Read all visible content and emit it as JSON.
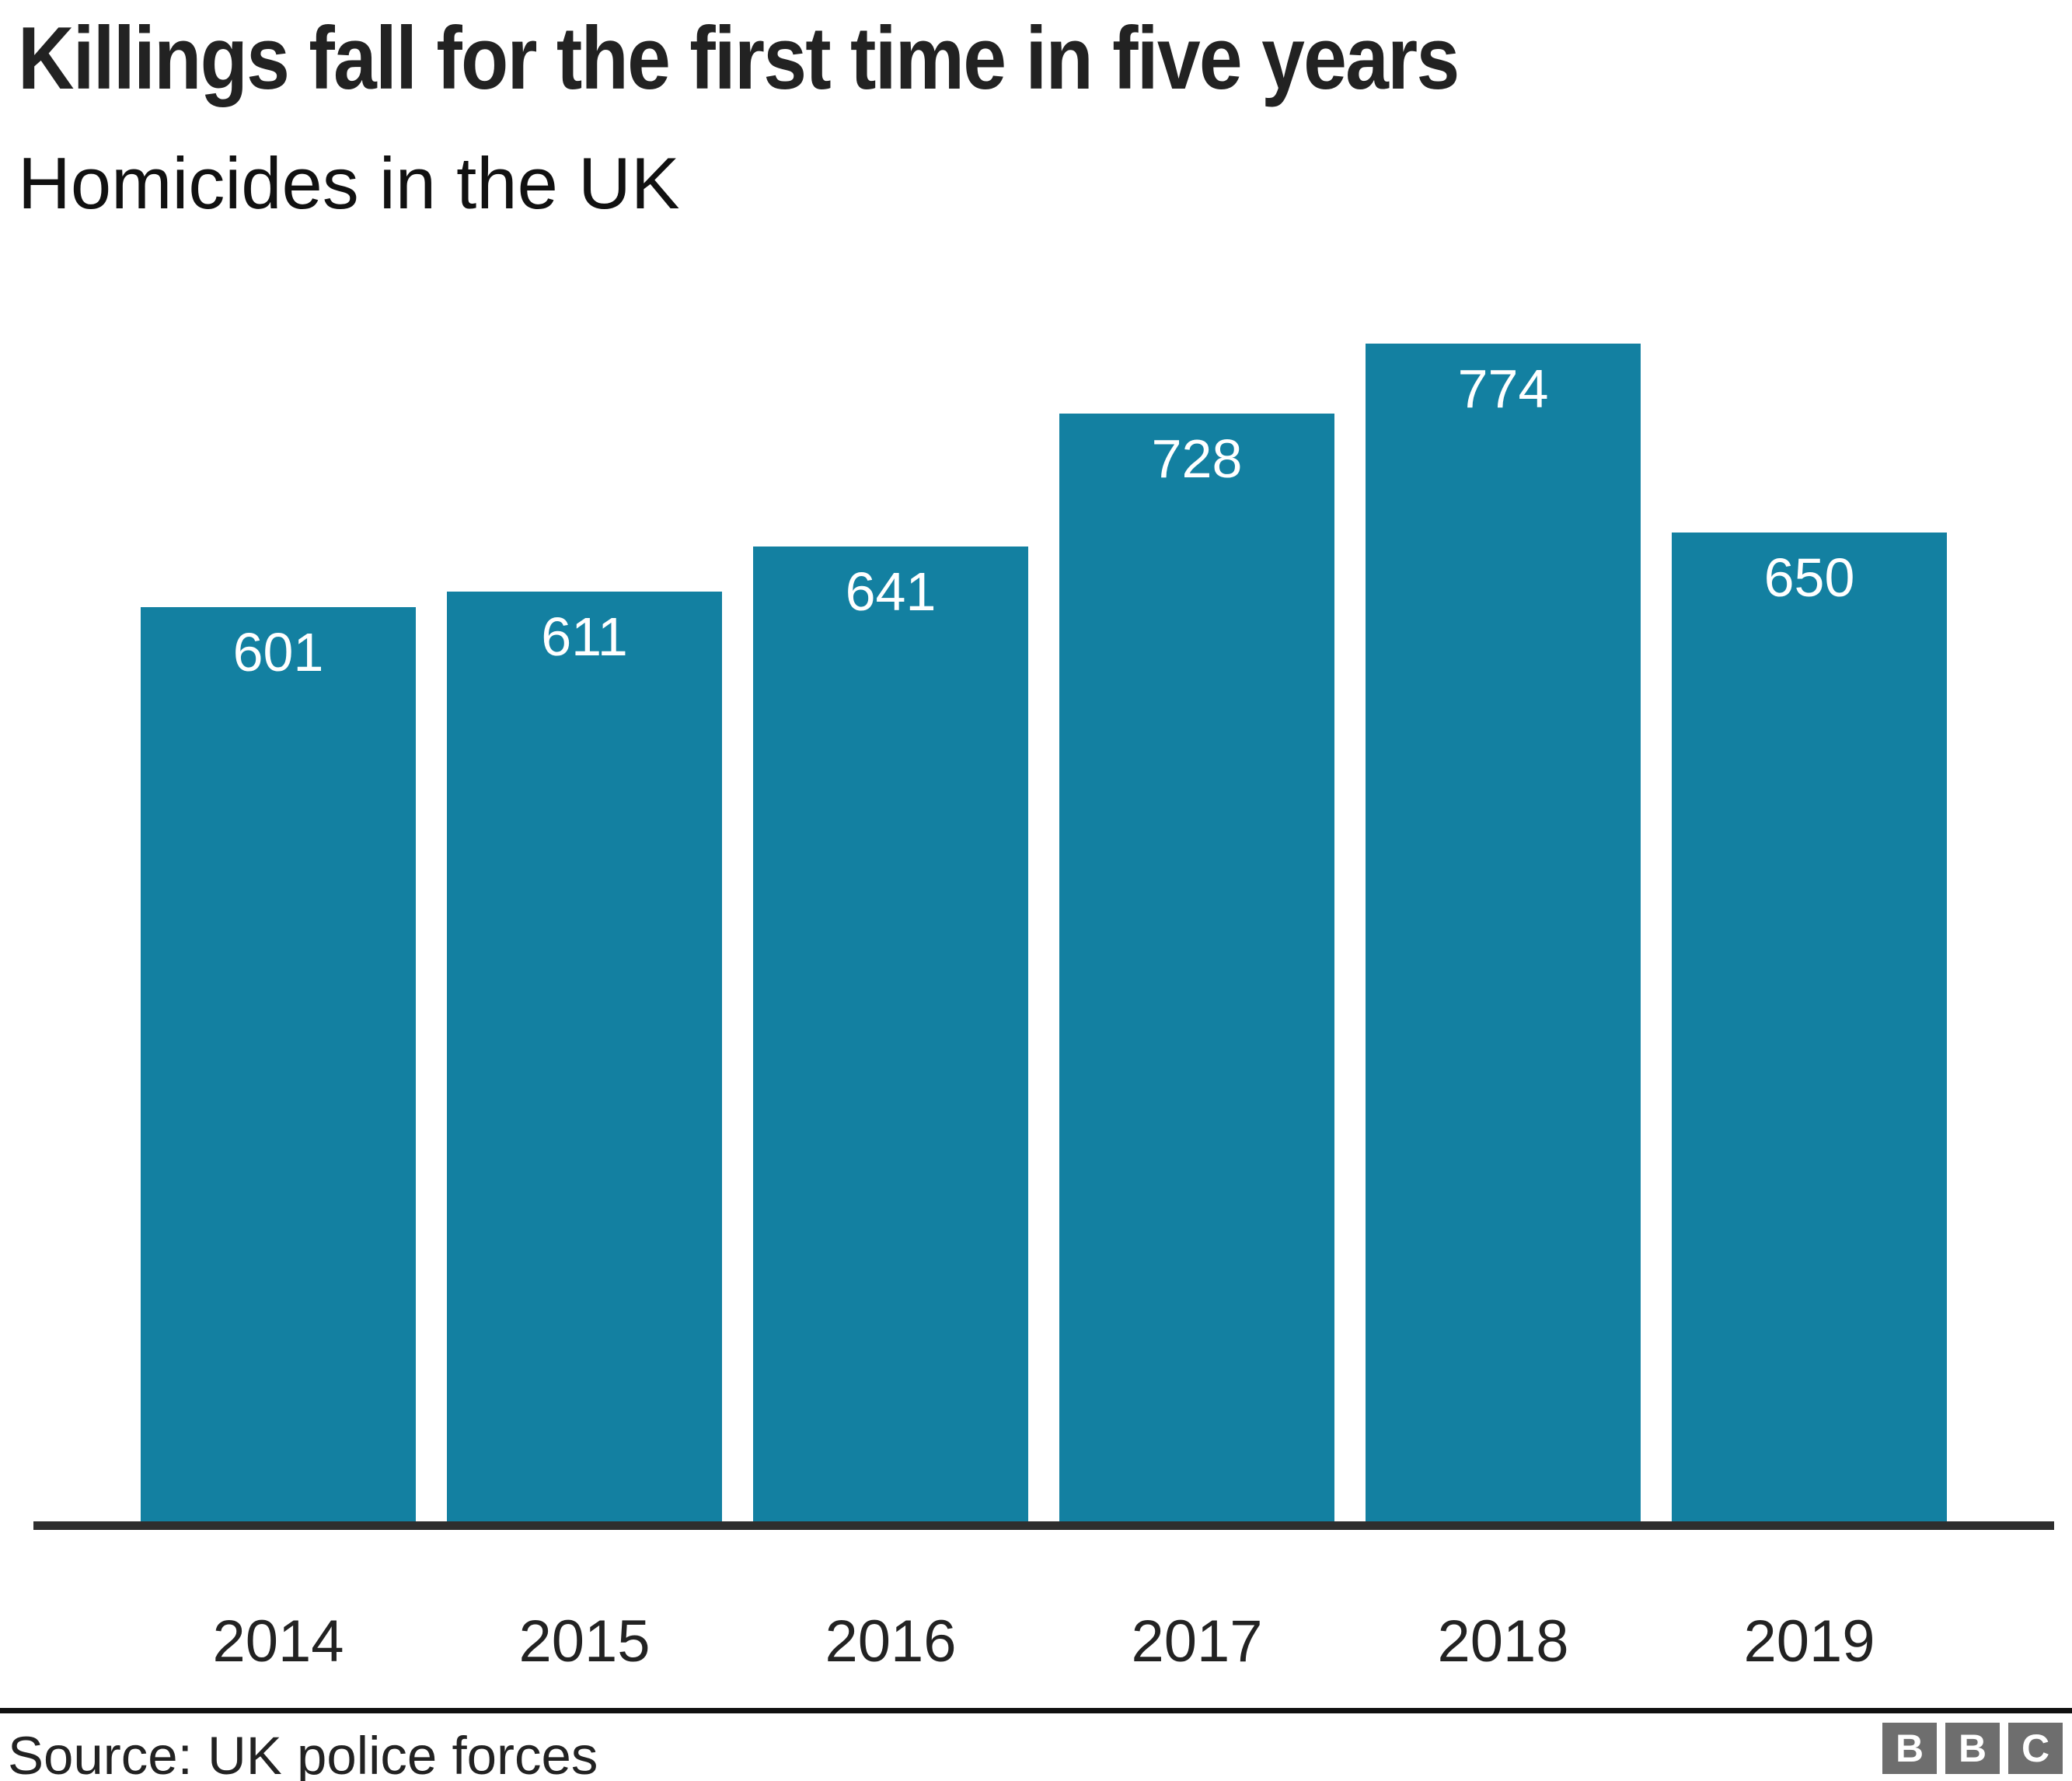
{
  "header": {
    "title": "Killings fall for the first time in five years",
    "subtitle": "Homicides in the UK"
  },
  "chart_data": {
    "type": "bar",
    "categories": [
      "2014",
      "2015",
      "2016",
      "2017",
      "2018",
      "2019"
    ],
    "values": [
      601,
      611,
      641,
      728,
      774,
      650
    ],
    "title": "Killings fall for the first time in five years",
    "subtitle": "Homicides in the UK",
    "xlabel": "",
    "ylabel": "",
    "ylim": [
      0,
      800
    ],
    "bar_value_labels_shown": true,
    "grid": false,
    "legend": false,
    "colors": {
      "bar": "#1380a1",
      "bar_label_text": "#ffffff",
      "axis_line": "#2e2e2e",
      "text": "#222222"
    }
  },
  "footer": {
    "source": "Source: UK police forces",
    "separator_color": "#111111",
    "bbc_letters": [
      "B",
      "B",
      "C"
    ],
    "logo_block_color": "#6e6e6e"
  }
}
